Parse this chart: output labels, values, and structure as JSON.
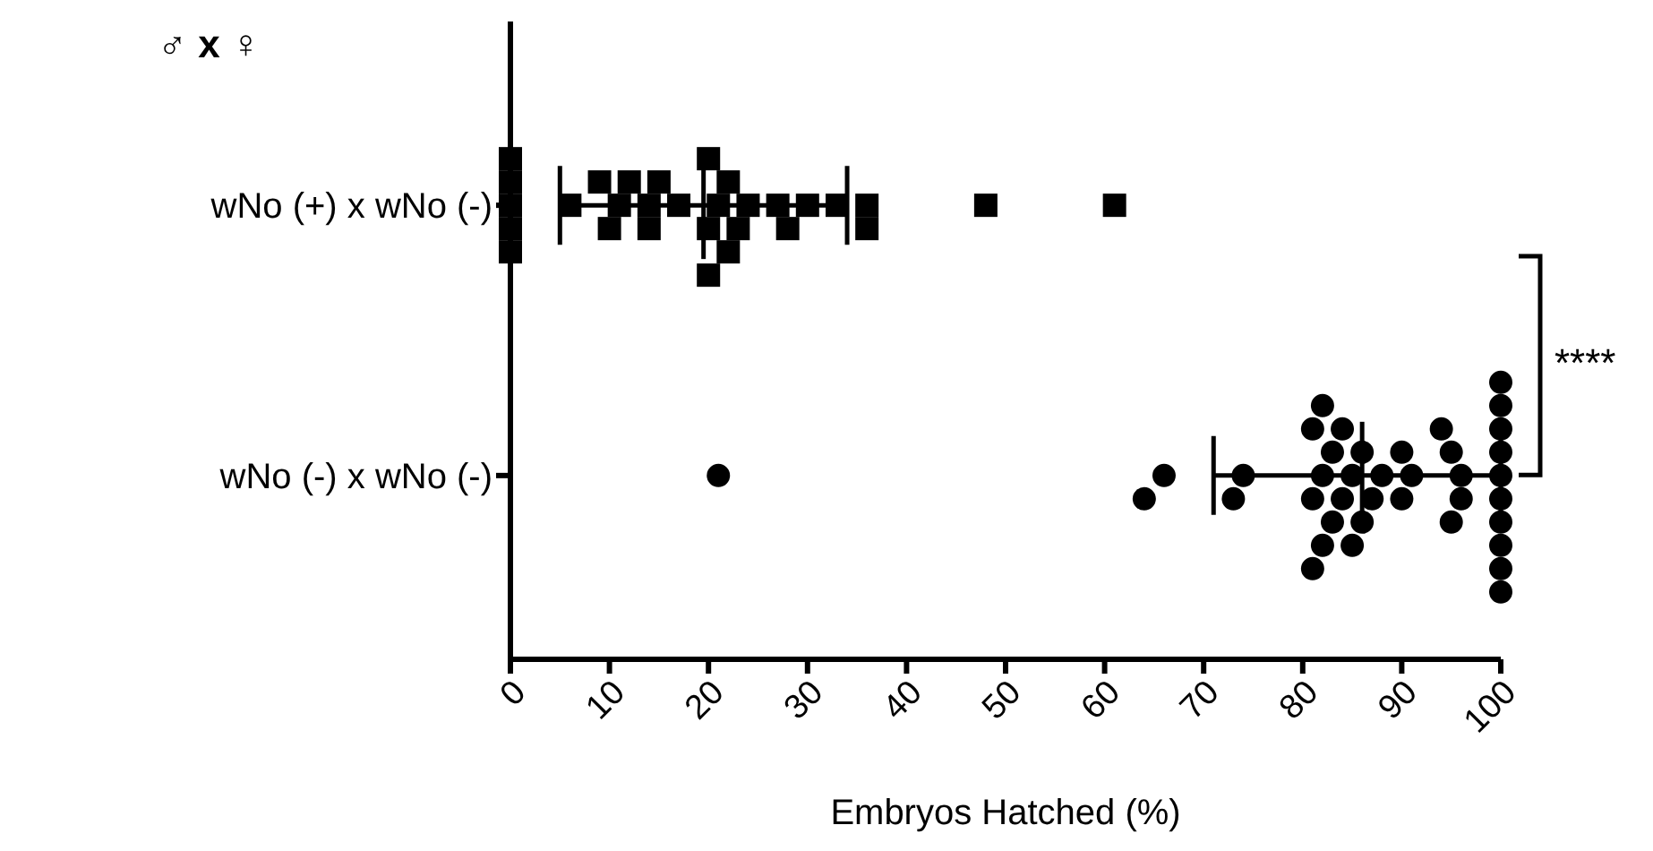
{
  "chart_data": {
    "type": "scatter",
    "orientation": "horizontal",
    "xlabel": "Embryos Hatched (%)",
    "categories": [
      "wNo (+)  x  wNo (-)",
      "wNo (-)  x  wNo (-)"
    ],
    "xlim": [
      0,
      100
    ],
    "xticks": [
      0,
      10,
      20,
      30,
      40,
      50,
      60,
      70,
      80,
      90,
      100
    ],
    "annotations": [
      "♂ x ♀",
      "****"
    ],
    "series": [
      {
        "marker": "square",
        "color": "#000000",
        "x": [
          "wNo (+)  x  wNo (-)",
          "wNo (+)  x  wNo (-)",
          "wNo (+)  x  wNo (-)",
          "wNo (+)  x  wNo (-)",
          "wNo (+)  x  wNo (-)",
          "wNo (+)  x  wNo (-)",
          "wNo (+)  x  wNo (-)",
          "wNo (+)  x  wNo (-)",
          "wNo (+)  x  wNo (-)",
          "wNo (+)  x  wNo (-)",
          "wNo (+)  x  wNo (-)",
          "wNo (+)  x  wNo (-)",
          "wNo (+)  x  wNo (-)",
          "wNo (+)  x  wNo (-)",
          "wNo (+)  x  wNo (-)",
          "wNo (+)  x  wNo (-)",
          "wNo (+)  x  wNo (-)",
          "wNo (+)  x  wNo (-)",
          "wNo (+)  x  wNo (-)",
          "wNo (+)  x  wNo (-)",
          "wNo (+)  x  wNo (-)",
          "wNo (+)  x  wNo (-)",
          "wNo (+)  x  wNo (-)",
          "wNo (+)  x  wNo (-)",
          "wNo (+)  x  wNo (-)",
          "wNo (+)  x  wNo (-)",
          "wNo (+)  x  wNo (-)",
          "wNo (+)  x  wNo (-)",
          "wNo (+)  x  wNo (-)",
          "wNo (+)  x  wNo (-)"
        ],
        "values": [
          0,
          0,
          0,
          0,
          0,
          17,
          6,
          11,
          27,
          33,
          48,
          61,
          14,
          21,
          24,
          10,
          12,
          20,
          22,
          30,
          36,
          22,
          9,
          14,
          20,
          28,
          36,
          15,
          20,
          23
        ]
      },
      {
        "marker": "circle",
        "color": "#000000",
        "x": [
          "wNo (-)  x  wNo (-)",
          "wNo (-)  x  wNo (-)",
          "wNo (-)  x  wNo (-)",
          "wNo (-)  x  wNo (-)",
          "wNo (-)  x  wNo (-)",
          "wNo (-)  x  wNo (-)",
          "wNo (-)  x  wNo (-)",
          "wNo (-)  x  wNo (-)",
          "wNo (-)  x  wNo (-)",
          "wNo (-)  x  wNo (-)",
          "wNo (-)  x  wNo (-)",
          "wNo (-)  x  wNo (-)",
          "wNo (-)  x  wNo (-)",
          "wNo (-)  x  wNo (-)",
          "wNo (-)  x  wNo (-)",
          "wNo (-)  x  wNo (-)",
          "wNo (-)  x  wNo (-)",
          "wNo (-)  x  wNo (-)",
          "wNo (-)  x  wNo (-)",
          "wNo (-)  x  wNo (-)",
          "wNo (-)  x  wNo (-)",
          "wNo (-)  x  wNo (-)",
          "wNo (-)  x  wNo (-)",
          "wNo (-)  x  wNo (-)",
          "wNo (-)  x  wNo (-)",
          "wNo (-)  x  wNo (-)",
          "wNo (-)  x  wNo (-)",
          "wNo (-)  x  wNo (-)",
          "wNo (-)  x  wNo (-)",
          "wNo (-)  x  wNo (-)",
          "wNo (-)  x  wNo (-)",
          "wNo (-)  x  wNo (-)",
          "wNo (-)  x  wNo (-)",
          "wNo (-)  x  wNo (-)",
          "wNo (-)  x  wNo (-)",
          "wNo (-)  x  wNo (-)",
          "wNo (-)  x  wNo (-)",
          "wNo (-)  x  wNo (-)",
          "wNo (-)  x  wNo (-)"
        ],
        "values": [
          100,
          100,
          100,
          100,
          100,
          100,
          100,
          100,
          100,
          100,
          96,
          96,
          95,
          95,
          94,
          91,
          90,
          90,
          88,
          87,
          86,
          86,
          85,
          84,
          84,
          83,
          83,
          82,
          82,
          82,
          81,
          81,
          81,
          85,
          74,
          73,
          66,
          64,
          21
        ]
      },
      {
        "type": "box",
        "color": "#000000",
        "boxes": [
          {
            "low": 5,
            "q1": 19.5,
            "median": 19.5,
            "q3": 19.5,
            "high": 34
          },
          {
            "low": 71,
            "q1": 86,
            "median": 86,
            "q3": 86,
            "high": 100
          }
        ]
      }
    ]
  }
}
